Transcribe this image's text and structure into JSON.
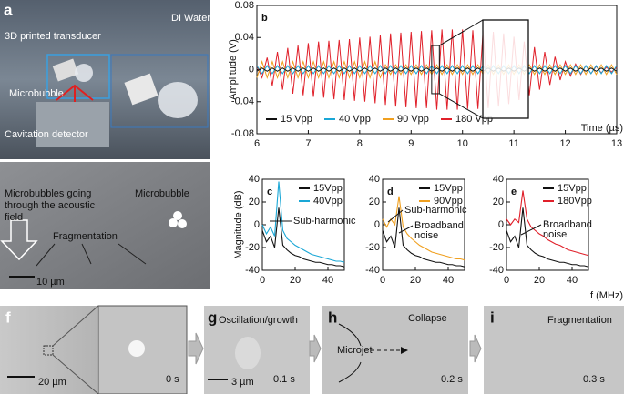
{
  "panel_a": {
    "label": "a",
    "medium": "DI Water",
    "transducer": "3D printed transducer",
    "bubble": "Microbubble",
    "detector": "Cavitation detector"
  },
  "panel_a2": {
    "text_lines": [
      "Microbubbles  going",
      "through the acoustic",
      "field"
    ],
    "bubble": "Microbubble",
    "fragmentation": "Fragmentation",
    "scale": "10 µm"
  },
  "chart_data": [
    {
      "type": "line",
      "label": "b",
      "xlabel": "Time (µs)",
      "ylabel": "Amplitude (V)",
      "x": [
        6,
        6.1,
        6.2,
        6.3,
        6.4,
        6.5,
        6.6,
        6.7,
        6.8,
        6.9,
        7,
        7.1,
        7.2,
        7.3,
        7.4,
        7.5,
        7.6,
        7.7,
        7.8,
        7.9,
        8,
        8.1,
        8.2,
        8.3,
        8.4,
        8.5,
        8.6,
        8.7,
        8.8,
        8.9,
        9,
        9.1,
        9.2,
        9.3,
        9.4,
        9.5,
        9.6,
        9.7,
        9.8,
        9.9,
        10,
        10.1,
        10.2,
        10.3,
        10.4,
        10.5,
        10.6,
        10.7,
        10.8,
        10.9,
        11,
        11.1,
        11.2,
        11.3,
        11.4,
        11.5,
        11.6,
        11.7,
        11.8,
        11.9,
        12,
        12.1,
        12.2,
        12.3,
        12.4,
        12.5,
        12.6,
        12.7,
        12.8,
        12.9,
        13
      ],
      "xlim": [
        6,
        13
      ],
      "xticks": [
        6,
        7,
        8,
        9,
        10,
        11,
        12,
        13
      ],
      "ylim": [
        -0.08,
        0.08
      ],
      "yticks": [
        -0.08,
        -0.04,
        0,
        0.04,
        0.08
      ],
      "series": [
        {
          "name": "15 Vpp",
          "color": "#111111",
          "values": [
            -0.002,
            0.002,
            -0.002,
            0.002,
            -0.002,
            0.002,
            -0.002,
            0.002,
            -0.002,
            0.002,
            -0.002,
            0.002,
            -0.002,
            0.002,
            -0.002,
            0.002,
            -0.002,
            0.002,
            -0.002,
            0.002,
            -0.002,
            0.002,
            -0.002,
            0.002,
            -0.002,
            0.002,
            -0.002,
            0.002,
            -0.002,
            0.002,
            -0.002,
            0.002,
            -0.002,
            0.002,
            -0.002,
            0.002,
            -0.002,
            0.002,
            -0.002,
            0.002,
            -0.002,
            0.002,
            -0.002,
            0.002,
            -0.002,
            0.002,
            -0.002,
            0.002,
            -0.002,
            0.002,
            -0.002,
            0.002,
            -0.002,
            0.002,
            -0.002,
            0.002,
            -0.002,
            0.002,
            -0.002,
            0.002,
            -0.002,
            0.002,
            -0.002,
            0.002,
            -0.002,
            0.002,
            -0.002,
            0.002,
            -0.002,
            0.002,
            -0.002
          ]
        },
        {
          "name": "40 Vpp",
          "color": "#1aa7d6",
          "values": [
            0.005,
            -0.005,
            0.005,
            -0.005,
            0.005,
            -0.005,
            0.005,
            -0.005,
            0.005,
            -0.005,
            0.005,
            -0.005,
            0.005,
            -0.005,
            0.005,
            -0.005,
            0.005,
            -0.005,
            0.005,
            -0.005,
            0.005,
            -0.005,
            0.005,
            -0.005,
            0.005,
            -0.005,
            0.005,
            -0.005,
            0.005,
            -0.005,
            0.005,
            -0.005,
            0.005,
            -0.005,
            0.005,
            -0.005,
            0.005,
            -0.005,
            0.005,
            -0.005,
            0.005,
            -0.005,
            0.005,
            -0.005,
            0.005,
            -0.005,
            0.005,
            -0.005,
            0.005,
            -0.005,
            0.005,
            -0.005,
            0.005,
            -0.005,
            0.005,
            -0.005,
            0.005,
            -0.005,
            0.005,
            -0.005,
            0.005,
            -0.005,
            0.005,
            -0.005,
            0.005,
            -0.005,
            0.005,
            -0.005,
            0.005,
            -0.005,
            0.005
          ]
        },
        {
          "name": "90 Vpp",
          "color": "#f0a020",
          "values": [
            -0.01,
            0.01,
            -0.01,
            0.01,
            -0.01,
            0.01,
            -0.01,
            0.01,
            -0.01,
            0.01,
            -0.01,
            0.01,
            -0.01,
            0.01,
            -0.01,
            0.01,
            -0.01,
            0.01,
            -0.01,
            0.01,
            -0.01,
            0.01,
            -0.01,
            0.01,
            -0.01,
            0.006,
            -0.006,
            0.006,
            -0.006,
            0.006,
            -0.006,
            0.006,
            -0.006,
            0.006,
            -0.006,
            0.006,
            -0.006,
            0.006,
            -0.006,
            0.006,
            -0.006,
            0.006,
            -0.006,
            0.006,
            -0.006,
            0.006,
            -0.006,
            0.006,
            -0.006,
            0.006,
            -0.006,
            0.006,
            -0.006,
            0.006,
            -0.006,
            0.006,
            -0.006,
            0.006,
            -0.006,
            0.006,
            -0.006,
            0.006,
            -0.006,
            0.006,
            -0.006,
            0.006,
            -0.006,
            0.006,
            -0.006,
            0.006,
            -0.006
          ]
        },
        {
          "name": "180 Vpp",
          "color": "#e0202a",
          "values": [
            0.005,
            -0.01,
            0.015,
            -0.02,
            0.022,
            -0.025,
            0.027,
            -0.03,
            0.03,
            -0.032,
            0.033,
            -0.034,
            0.035,
            -0.035,
            0.036,
            -0.037,
            0.037,
            -0.038,
            0.038,
            -0.039,
            0.04,
            -0.04,
            0.041,
            -0.042,
            0.043,
            -0.044,
            0.045,
            -0.046,
            0.046,
            -0.047,
            0.047,
            -0.048,
            0.048,
            -0.048,
            0.049,
            -0.05,
            0.05,
            -0.05,
            0.05,
            -0.05,
            0.05,
            -0.049,
            0.049,
            -0.049,
            0.048,
            -0.048,
            0.047,
            -0.046,
            0.045,
            -0.043,
            0.041,
            -0.038,
            0.035,
            -0.032,
            0.028,
            -0.025,
            0.022,
            -0.019,
            0.016,
            -0.013,
            0.01,
            -0.008,
            0.007,
            -0.006,
            0.005,
            -0.005,
            0.004,
            -0.004,
            0.003,
            -0.003,
            0.003
          ]
        }
      ]
    },
    {
      "type": "line",
      "label": "c",
      "ylabel": "Magnitude (dB)",
      "x": [
        0,
        2.5,
        5,
        7.5,
        10,
        12.5,
        15,
        17.5,
        20,
        22.5,
        25,
        27.5,
        30,
        32.5,
        35,
        37.5,
        40,
        42.5,
        45,
        47.5,
        50
      ],
      "xlim": [
        0,
        50
      ],
      "xticks": [
        0,
        20,
        40
      ],
      "ylim": [
        -40,
        40
      ],
      "yticks": [
        -40,
        -20,
        0,
        20,
        40
      ],
      "annotations": [
        [
          "Sub-harmonic"
        ]
      ],
      "series": [
        {
          "name": "15Vpp",
          "color": "#111111",
          "values": [
            -5,
            -15,
            -10,
            -20,
            15,
            -18,
            -22,
            -25,
            -27,
            -28,
            -30,
            -31,
            -32,
            -33,
            -33,
            -34,
            -35,
            -35,
            -36,
            -36,
            -37
          ]
        },
        {
          "name": "40Vpp",
          "color": "#1aa7d6",
          "values": [
            0,
            -8,
            -2,
            -10,
            38,
            -5,
            -12,
            -15,
            -18,
            -20,
            -22,
            -24,
            -26,
            -27,
            -28,
            -29,
            -30,
            -31,
            -32,
            -32,
            -33
          ]
        }
      ]
    },
    {
      "type": "line",
      "label": "d",
      "x": [
        0,
        2.5,
        5,
        7.5,
        10,
        12.5,
        15,
        17.5,
        20,
        22.5,
        25,
        27.5,
        30,
        32.5,
        35,
        37.5,
        40,
        42.5,
        45,
        47.5,
        50
      ],
      "xlim": [
        0,
        50
      ],
      "xticks": [
        0,
        20,
        40
      ],
      "ylim": [
        -40,
        40
      ],
      "yticks": [
        -40,
        -20,
        0,
        20,
        40
      ],
      "annotations": [
        [
          "Sub-harmonic"
        ],
        [
          "Broadband",
          "noise"
        ]
      ],
      "series": [
        {
          "name": "15Vpp",
          "color": "#111111",
          "values": [
            -5,
            -15,
            -10,
            -20,
            15,
            -18,
            -22,
            -25,
            -27,
            -28,
            -30,
            -31,
            -32,
            -33,
            -33,
            -34,
            -35,
            -35,
            -36,
            -36,
            -37
          ]
        },
        {
          "name": "90Vpp",
          "color": "#f0a020",
          "values": [
            5,
            -2,
            5,
            0,
            25,
            -2,
            -8,
            -12,
            -15,
            -18,
            -20,
            -22,
            -24,
            -25,
            -26,
            -27,
            -28,
            -29,
            -30,
            -30,
            -31
          ]
        }
      ]
    },
    {
      "type": "line",
      "label": "e",
      "xlabel": "f (MHz)",
      "x": [
        0,
        2.5,
        5,
        7.5,
        10,
        12.5,
        15,
        17.5,
        20,
        22.5,
        25,
        27.5,
        30,
        32.5,
        35,
        37.5,
        40,
        42.5,
        45,
        47.5,
        50
      ],
      "xlim": [
        0,
        50
      ],
      "xticks": [
        0,
        20,
        40
      ],
      "ylim": [
        -40,
        40
      ],
      "yticks": [
        -40,
        -20,
        0,
        20,
        40
      ],
      "annotations": [
        [
          "Broadband",
          "noise"
        ]
      ],
      "series": [
        {
          "name": "15Vpp",
          "color": "#111111",
          "values": [
            -5,
            -15,
            -10,
            -20,
            15,
            -18,
            -22,
            -25,
            -27,
            -28,
            -30,
            -31,
            -32,
            -33,
            -33,
            -34,
            -35,
            -35,
            -36,
            -36,
            -37
          ]
        },
        {
          "name": "180Vpp",
          "color": "#e0202a",
          "values": [
            5,
            0,
            5,
            2,
            30,
            5,
            -2,
            -5,
            -8,
            -10,
            -13,
            -15,
            -17,
            -18,
            -20,
            -22,
            -23,
            -24,
            -25,
            -26,
            -27
          ]
        }
      ]
    }
  ],
  "panel_f": {
    "label": "f",
    "scale": "20 µm",
    "time": "0 s"
  },
  "panel_g": {
    "label": "g",
    "title": "Oscillation/growth",
    "scale": "3 µm",
    "time": "0.1 s"
  },
  "panel_h": {
    "label": "h",
    "title": "Collapse",
    "jet": "Microjet",
    "time": "0.2 s"
  },
  "panel_i": {
    "label": "i",
    "title": "Fragmentation",
    "time": "0.3 s"
  }
}
